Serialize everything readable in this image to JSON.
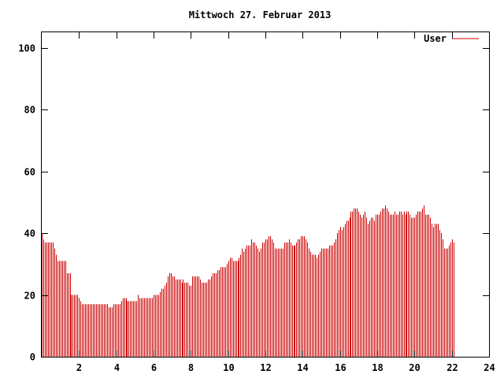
{
  "chart_data": {
    "type": "bar",
    "title": "Mittwoch 27. Februar 2013",
    "xlabel": "",
    "ylabel": "",
    "xlim": [
      0,
      24
    ],
    "ylim": [
      0,
      105
    ],
    "x_ticks": [
      2,
      4,
      6,
      8,
      10,
      12,
      14,
      16,
      18,
      20,
      22,
      24
    ],
    "y_ticks": [
      0,
      20,
      40,
      60,
      80,
      100
    ],
    "grid": false,
    "legend_position": "top-right",
    "colors": {
      "series": "#cc0000",
      "axis": "#000000"
    },
    "series": [
      {
        "name": "User",
        "sample_interval_minutes": 5,
        "values": [
          40,
          38,
          37,
          37,
          37,
          37,
          37,
          37,
          35,
          33,
          31,
          31,
          31,
          31,
          31,
          31,
          27,
          27,
          27,
          20,
          20,
          20,
          20,
          20,
          19,
          18,
          17,
          17,
          17,
          17,
          17,
          17,
          17,
          17,
          17,
          17,
          17,
          17,
          17,
          17,
          17,
          17,
          17,
          16,
          16,
          16,
          17,
          17,
          17,
          17,
          17,
          18,
          19,
          19,
          19,
          18,
          18,
          18,
          18,
          18,
          18,
          18,
          20,
          19,
          19,
          19,
          19,
          19,
          19,
          19,
          19,
          19,
          20,
          20,
          20,
          20,
          21,
          22,
          22,
          23,
          24,
          26,
          27,
          27,
          26,
          26,
          25,
          25,
          25,
          25,
          24,
          25,
          24,
          24,
          24,
          23,
          23,
          26,
          26,
          26,
          26,
          26,
          25,
          24,
          24,
          24,
          24,
          25,
          25,
          26,
          27,
          27,
          27,
          28,
          28,
          29,
          29,
          29,
          29,
          30,
          31,
          32,
          32,
          31,
          31,
          31,
          31,
          32,
          33,
          35,
          34,
          35,
          36,
          36,
          36,
          38,
          37,
          37,
          36,
          35,
          34,
          35,
          37,
          37,
          38,
          38,
          39,
          39,
          38,
          37,
          35,
          35,
          35,
          35,
          35,
          35,
          37,
          37,
          37,
          38,
          37,
          36,
          36,
          36,
          37,
          38,
          38,
          39,
          39,
          39,
          38,
          37,
          35,
          34,
          33,
          33,
          33,
          32,
          33,
          34,
          35,
          35,
          35,
          35,
          35,
          36,
          36,
          36,
          37,
          38,
          40,
          41,
          42,
          41,
          42,
          43,
          44,
          44,
          45,
          47,
          47,
          48,
          48,
          48,
          47,
          46,
          45,
          46,
          47,
          45,
          43,
          44,
          45,
          45,
          44,
          46,
          46,
          46,
          47,
          48,
          48,
          49,
          48,
          47,
          46,
          46,
          46,
          47,
          46,
          46,
          47,
          47,
          46,
          47,
          46,
          47,
          47,
          46,
          45,
          45,
          45,
          46,
          47,
          47,
          47,
          48,
          49,
          46,
          46,
          46,
          45,
          43,
          42,
          43,
          43,
          43,
          41,
          40,
          38,
          35,
          35,
          35,
          36,
          37,
          38,
          37
        ]
      }
    ]
  }
}
